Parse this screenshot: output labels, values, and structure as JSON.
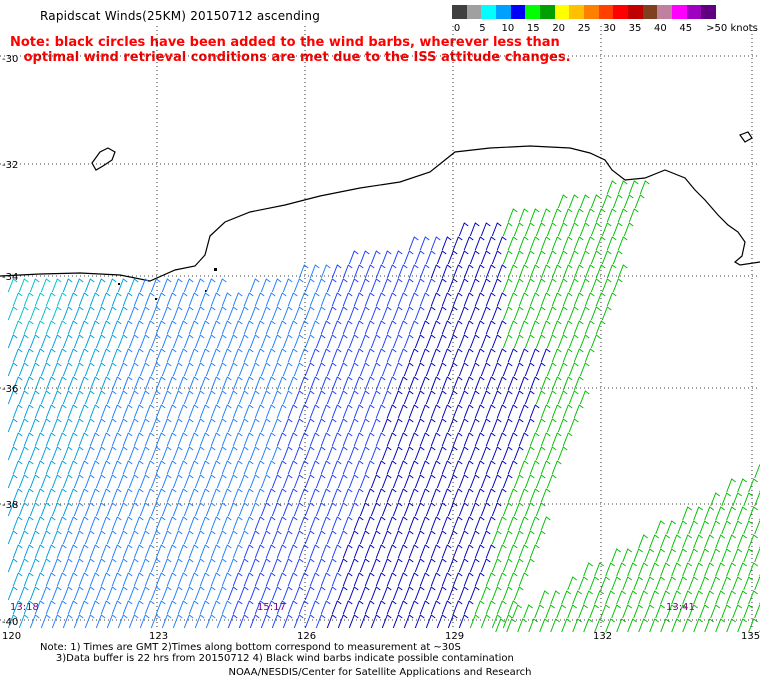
{
  "header": {
    "title": "Rapidscat Winds(25KM) 20150712 ascending",
    "note_line1": "Note: black circles have been added to the wind barbs, wherever less than",
    "note_line2": "optimal wind retrieval conditions are met due to the ISS attitude changes."
  },
  "colorbar": {
    "colors": [
      "#404040",
      "#a0a0a0",
      "#00ffff",
      "#00a0ff",
      "#0000ff",
      "#00ff00",
      "#00a000",
      "#ffff00",
      "#ffc000",
      "#ff8000",
      "#ff4000",
      "#ff0000",
      "#c00000",
      "#804020",
      "#c080a0",
      "#ff00ff",
      "#a000c0",
      "#600080"
    ],
    "labels": [
      "0",
      "5",
      "10",
      "15",
      "20",
      "25",
      "30",
      "35",
      "40",
      "45",
      ">50 knots"
    ]
  },
  "map": {
    "lat_labels": [
      "-30",
      "-32",
      "-34",
      "-36",
      "-38",
      "-40"
    ],
    "lon_labels": [
      "120",
      "123",
      "126",
      "129",
      "132",
      "135"
    ],
    "pass_times": [
      "13:18",
      "15:17",
      "13:41"
    ]
  },
  "footer": {
    "note_line1": "Note: 1) Times are GMT 2)Times along bottom correspond to measurement at ~30S",
    "note_line2": "     3)Data buffer is 22 hrs from 20150712 4) Black wind barbs indicate possible contamination",
    "credit": "NOAA/NESDIS/Center for Satellite Applications and Research"
  }
}
